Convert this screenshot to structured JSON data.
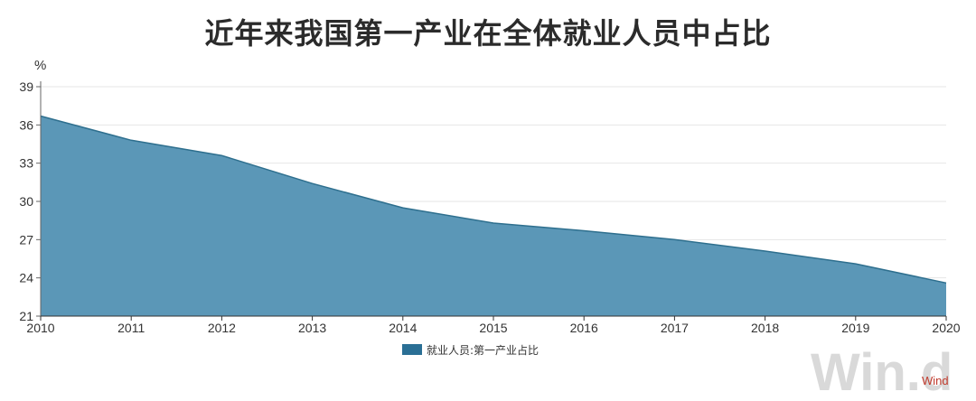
{
  "chart_data": {
    "type": "area",
    "title": "近年来我国第一产业在全体就业人员中占比",
    "ylabel": "%",
    "xlabel": "",
    "x": [
      "2010",
      "2011",
      "2012",
      "2013",
      "2014",
      "2015",
      "2016",
      "2017",
      "2018",
      "2019",
      "2020"
    ],
    "series": [
      {
        "name": "就业人员:第一产业占比",
        "values": [
          36.7,
          34.8,
          33.6,
          31.4,
          29.5,
          28.3,
          27.7,
          27.0,
          26.1,
          25.1,
          23.6
        ],
        "color": "#5b97b7"
      }
    ],
    "ylim": [
      21,
      39
    ],
    "yticks": [
      "21",
      "24",
      "27",
      "30",
      "33",
      "36",
      "39"
    ],
    "grid": true,
    "legend": "bottom-center"
  },
  "watermark": "Win.d",
  "source": "Wind",
  "colors": {
    "area": "#5b97b7",
    "line": "#2e6f8e",
    "legend_swatch": "#2a6f95",
    "source": "#c0392b"
  }
}
